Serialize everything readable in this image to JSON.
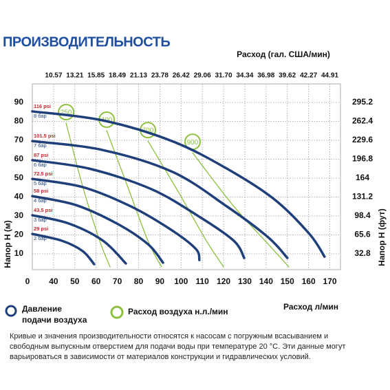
{
  "title": "ПРОИЗВОДИТЕЛЬНОСТЬ",
  "chart_data": {
    "type": "line",
    "x_label": "Расход л/мин",
    "x2_label": "Расход (гал. США/мин)",
    "y_label": "Напор H (м)",
    "y2_label": "Напор H (фут)",
    "origin_label": "0",
    "xlim": [
      30,
      175
    ],
    "xticks": [
      40,
      50,
      60,
      70,
      80,
      90,
      100,
      110,
      120,
      130,
      140,
      150,
      160,
      170
    ],
    "x2lim": [
      7.926,
      46.235
    ],
    "x2ticks": [
      10.57,
      13.21,
      15.85,
      18.49,
      21.13,
      23.78,
      26.42,
      29.06,
      {
        "value": 31.7,
        "label": "31.70"
      },
      34.34,
      36.98,
      39.62,
      42.27,
      44.91
    ],
    "ylim": [
      0,
      100
    ],
    "yticks": [
      10,
      20,
      30,
      40,
      50,
      60,
      70,
      80,
      90
    ],
    "y2lim": [
      0,
      328
    ],
    "y2ticks": [
      32.8,
      65.6,
      98.4,
      131.2,
      164,
      196.8,
      229.6,
      262.4,
      295.2
    ],
    "grid": true,
    "pressure_legend": [
      "Давление",
      "подачи воздуха"
    ],
    "air_legend": "Расход воздуха н.л./мин",
    "series": [
      {
        "name": "8 бар",
        "psi_label": "116 psi",
        "color": "#1f3f7a",
        "x": [
          30,
          63.3,
          95.7,
          121.6,
          144,
          160.4,
          167.5
        ],
        "values": [
          85.3,
          80.5,
          69.6,
          55,
          38.7,
          20.5,
          8.5
        ]
      },
      {
        "name": "7 бар",
        "psi_label": "101.5 psi",
        "color": "#1f3f7a",
        "x": [
          30,
          63,
          96,
          121.6,
          141,
          150
        ],
        "values": [
          69.6,
          64.9,
          53.3,
          35,
          18.7,
          7.8
        ]
      },
      {
        "name": "6 бар",
        "psi_label": "87 psi",
        "color": "#1f3f7a",
        "x": [
          30,
          56.9,
          86,
          108.6,
          124.8,
          129.7
        ],
        "values": [
          59.5,
          55,
          44.2,
          29.6,
          16.9,
          7.8
        ]
      },
      {
        "name": "5 бар",
        "psi_label": "72.5 psi",
        "color": "#1f3f7a",
        "x": [
          30,
          53.6,
          76.3,
          95.7,
          107,
          108.6
        ],
        "values": [
          49.6,
          45.3,
          35.1,
          22.4,
          12.5,
          6.7
        ]
      },
      {
        "name": "4 бар",
        "psi_label": "58 psi",
        "color": "#1f3f7a",
        "x": [
          30,
          50.4,
          69.8,
          84.4,
          91.5
        ],
        "values": [
          40.5,
          35.8,
          26,
          15.1,
          5.3
        ]
      },
      {
        "name": "3 бар",
        "psi_label": "43.5 psi",
        "color": "#1f3f7a",
        "x": [
          30,
          47.2,
          63.3,
          74
        ],
        "values": [
          30.4,
          26,
          16.9,
          4.9
        ]
      },
      {
        "name": "2 бар",
        "psi_label": "29 psi",
        "color": "#1f3f7a",
        "x": [
          30,
          43.9,
          53.6,
          59.1
        ],
        "values": [
          20.5,
          16.9,
          11.5,
          4.5
        ]
      }
    ],
    "air_series": [
      {
        "name": "250",
        "color": "#8dc03f",
        "x": [
          45.9,
          53.6,
          61.7,
          66.6
        ],
        "values": [
          79.1,
          46,
          16.9,
          3.1
        ]
      },
      {
        "name": "400",
        "color": "#8dc03f",
        "x": [
          65,
          74.7,
          84.4,
          90.8
        ],
        "values": [
          75.1,
          46,
          16.9,
          3.1
        ]
      },
      {
        "name": "700",
        "color": "#8dc03f",
        "x": [
          84.4,
          98.9,
          111.9,
          120
        ],
        "values": [
          69.6,
          42.4,
          16.9,
          3.1
        ]
      },
      {
        "name": "900",
        "color": "#8dc03f",
        "x": [
          105.4,
          124.8,
          141,
          150.7
        ],
        "values": [
          63.4,
          35.1,
          15.1,
          3.1
        ]
      }
    ]
  },
  "note": "Кривые и значения производительности относятся к насосам с погружным всасыванием и свободным выпускным отверстием для подачи воды при температуре 20 °C. Эти данные могут варьироваться в зависимости от материалов конструкции и гидравлических условий."
}
